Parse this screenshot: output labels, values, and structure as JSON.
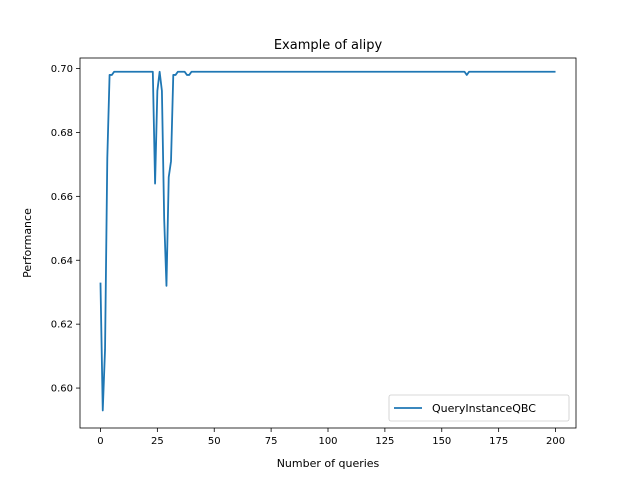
{
  "chart_data": {
    "type": "line",
    "title": "Example of alipy",
    "xlabel": "Number of queries",
    "ylabel": "Performance",
    "xlim": [
      -9,
      209
    ],
    "ylim": [
      0.5875,
      0.7033
    ],
    "xticks": [
      0,
      25,
      50,
      75,
      100,
      125,
      150,
      175,
      200
    ],
    "yticks": [
      0.6,
      0.62,
      0.64,
      0.66,
      0.68,
      0.7
    ],
    "ytick_labels": [
      "0.60",
      "0.62",
      "0.64",
      "0.66",
      "0.68",
      "0.70"
    ],
    "xtick_labels": [
      "0",
      "25",
      "50",
      "75",
      "100",
      "125",
      "150",
      "175",
      "200"
    ],
    "grid": false,
    "legend_position": "lower-right",
    "series": [
      {
        "name": "QueryInstanceQBC",
        "color": "#1f77b4",
        "points": [
          [
            0,
            0.633
          ],
          [
            1,
            0.593
          ],
          [
            2,
            0.612
          ],
          [
            3,
            0.672
          ],
          [
            4,
            0.698
          ],
          [
            5,
            0.698
          ],
          [
            6,
            0.699
          ],
          [
            8,
            0.699
          ],
          [
            10,
            0.699
          ],
          [
            15,
            0.699
          ],
          [
            20,
            0.699
          ],
          [
            23,
            0.699
          ],
          [
            24,
            0.664
          ],
          [
            25,
            0.693
          ],
          [
            26,
            0.699
          ],
          [
            27,
            0.693
          ],
          [
            28,
            0.653
          ],
          [
            29,
            0.632
          ],
          [
            30,
            0.666
          ],
          [
            31,
            0.671
          ],
          [
            32,
            0.698
          ],
          [
            33,
            0.698
          ],
          [
            34,
            0.699
          ],
          [
            36,
            0.699
          ],
          [
            37,
            0.699
          ],
          [
            38,
            0.698
          ],
          [
            39,
            0.698
          ],
          [
            40,
            0.699
          ],
          [
            45,
            0.699
          ],
          [
            50,
            0.699
          ],
          [
            100,
            0.699
          ],
          [
            150,
            0.699
          ],
          [
            160,
            0.699
          ],
          [
            161,
            0.698
          ],
          [
            162,
            0.699
          ],
          [
            170,
            0.699
          ],
          [
            200,
            0.699
          ]
        ]
      }
    ]
  }
}
